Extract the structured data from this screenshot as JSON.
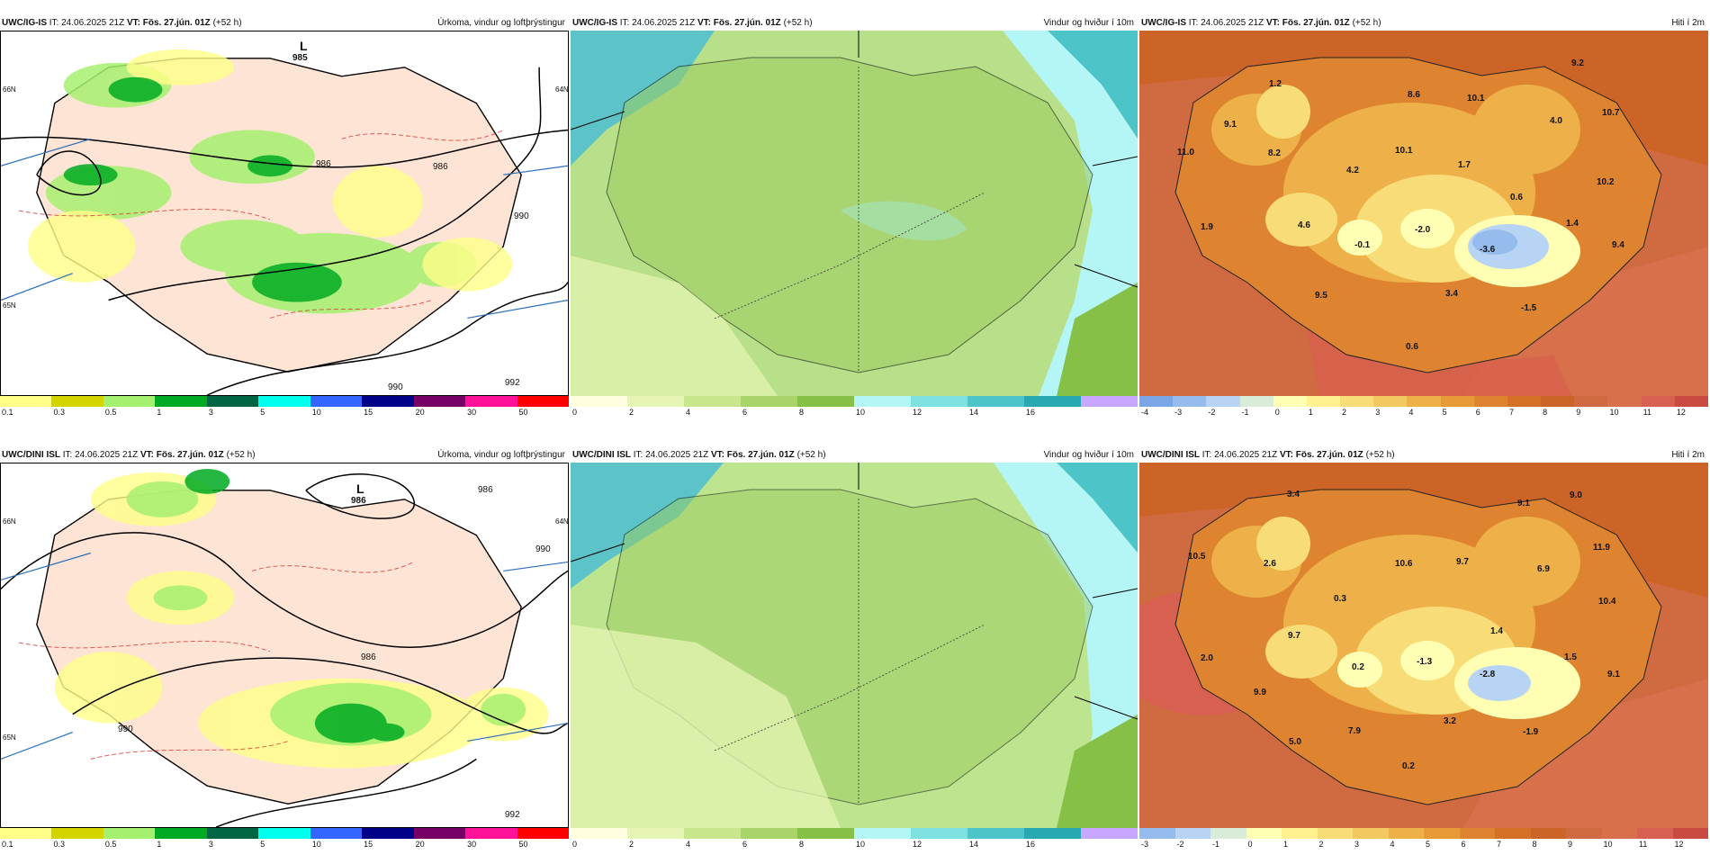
{
  "panels": [
    {
      "model": "UWC/IG-IS",
      "it_label": "IT:",
      "it": "24.06.2025 21Z",
      "vt_label": "VT:",
      "vt": "Fös. 27.jún. 01Z",
      "lead": "(+52 h)",
      "title": "Úrkoma, vindur og loftþrýstingur",
      "low_label": "L",
      "low_value": "985",
      "isobars": [
        "986",
        "986",
        "990",
        "992",
        "990"
      ],
      "lat_labels": [
        "66N",
        "65N",
        "64N"
      ],
      "legend": [
        "0.1",
        "0.3",
        "0.5",
        "1",
        "3",
        "5",
        "10",
        "15",
        "20",
        "30",
        "50"
      ],
      "colors": [
        "#ffff88",
        "#d4d400",
        "#a6f070",
        "#00aa22",
        "#006644",
        "#00ffee",
        "#3366ff",
        "#000088",
        "#770066",
        "#ff1199",
        "#ff0000"
      ]
    },
    {
      "model": "UWC/IG-IS",
      "it_label": "IT:",
      "it": "24.06.2025 21Z",
      "vt_label": "VT:",
      "vt": "Fös. 27.jún. 01Z",
      "lead": "(+52 h)",
      "title": "Vindur og hviður í 10m",
      "legend": [
        "0",
        "2",
        "4",
        "6",
        "8",
        "10",
        "12",
        "14",
        "16"
      ],
      "colors": [
        "#ffffe0",
        "#e6f5b4",
        "#c8e68c",
        "#a8d46a",
        "#86c046",
        "#b4f5f5",
        "#7fe0e0",
        "#4cc4c8",
        "#28a8b0",
        "#c8a8ff"
      ]
    },
    {
      "model": "UWC/IG-IS",
      "it_label": "IT:",
      "it": "24.06.2025 21Z",
      "vt_label": "VT:",
      "vt": "Fös. 27.jún. 01Z",
      "lead": "(+52 h)",
      "title": "Hiti í 2m",
      "values": [
        "1.2",
        "9.2",
        "8.6",
        "10.1",
        "10.7",
        "9.1",
        "4.0",
        "11.0",
        "8.2",
        "10.1",
        "1.7",
        "4.2",
        "10.2",
        "0.6",
        "1.9",
        "4.6",
        "-0.1",
        "-2.0",
        "1.4",
        "9.4",
        "-3.6",
        "9.5",
        "3.4",
        "-1.5",
        "0.6"
      ],
      "legend": [
        "-4",
        "-3",
        "-2",
        "-1",
        "0",
        "1",
        "2",
        "3",
        "4",
        "5",
        "6",
        "7",
        "8",
        "9",
        "10",
        "11",
        "12"
      ],
      "colors": [
        "#7aa6e6",
        "#96bcee",
        "#b8d4f4",
        "#d8ecd8",
        "#ffffb4",
        "#fff090",
        "#f8dc78",
        "#f4c860",
        "#eeb048",
        "#e89a38",
        "#de8430",
        "#d47028",
        "#cc6428",
        "#d06a40",
        "#d8704c",
        "#d86050",
        "#c84a40"
      ]
    },
    {
      "model": "UWC/DINI ISL",
      "it_label": "IT:",
      "it": "24.06.2025 21Z",
      "vt_label": "VT:",
      "vt": "Fös. 27.jún. 01Z",
      "lead": "(+52 h)",
      "title": "Úrkoma, vindur og loftþrýstingur",
      "low_label": "L",
      "low_value": "986",
      "isobars": [
        "986",
        "990",
        "986",
        "990",
        "992"
      ],
      "lat_labels": [
        "66N",
        "65N",
        "64N"
      ],
      "legend": [
        "0.1",
        "0.3",
        "0.5",
        "1",
        "3",
        "5",
        "10",
        "15",
        "20",
        "30",
        "50"
      ],
      "colors": [
        "#ffff88",
        "#d4d400",
        "#a6f070",
        "#00aa22",
        "#006644",
        "#00ffee",
        "#3366ff",
        "#000088",
        "#770066",
        "#ff1199",
        "#ff0000"
      ]
    },
    {
      "model": "UWC/DINI ISL",
      "it_label": "IT:",
      "it": "24.06.2025 21Z",
      "vt_label": "VT:",
      "vt": "Fös. 27.jún. 01Z",
      "lead": "(+52 h)",
      "title": "Vindur og hviður í 10m",
      "legend": [
        "0",
        "2",
        "4",
        "6",
        "8",
        "10",
        "12",
        "14",
        "16"
      ],
      "colors": [
        "#ffffe0",
        "#e6f5b4",
        "#c8e68c",
        "#a8d46a",
        "#86c046",
        "#b4f5f5",
        "#7fe0e0",
        "#4cc4c8",
        "#28a8b0",
        "#c8a8ff"
      ]
    },
    {
      "model": "UWC/DINI ISL",
      "it_label": "IT:",
      "it": "24.06.2025 21Z",
      "vt_label": "VT:",
      "vt": "Fös. 27.jún. 01Z",
      "lead": "(+52 h)",
      "title": "Hiti í 2m",
      "values": [
        "3.4",
        "9.1",
        "9.0",
        "10.5",
        "2.6",
        "10.6",
        "9.7",
        "6.9",
        "11.9",
        "0.3",
        "10.4",
        "9.7",
        "1.4",
        "2.0",
        "0.2",
        "-1.3",
        "1.5",
        "-2.8",
        "9.1",
        "9.9",
        "3.2",
        "5.0",
        "7.9",
        "-1.9",
        "0.2"
      ],
      "legend": [
        "-3",
        "-2",
        "-1",
        "0",
        "1",
        "2",
        "3",
        "4",
        "5",
        "6",
        "7",
        "8",
        "9",
        "10",
        "11",
        "12"
      ],
      "colors": [
        "#96bcee",
        "#b8d4f4",
        "#d8ecd8",
        "#ffffb4",
        "#fff090",
        "#f8dc78",
        "#f4c860",
        "#eeb048",
        "#e89a38",
        "#de8430",
        "#d47028",
        "#cc6428",
        "#d06a40",
        "#d8704c",
        "#d86050",
        "#c84a40"
      ]
    }
  ]
}
